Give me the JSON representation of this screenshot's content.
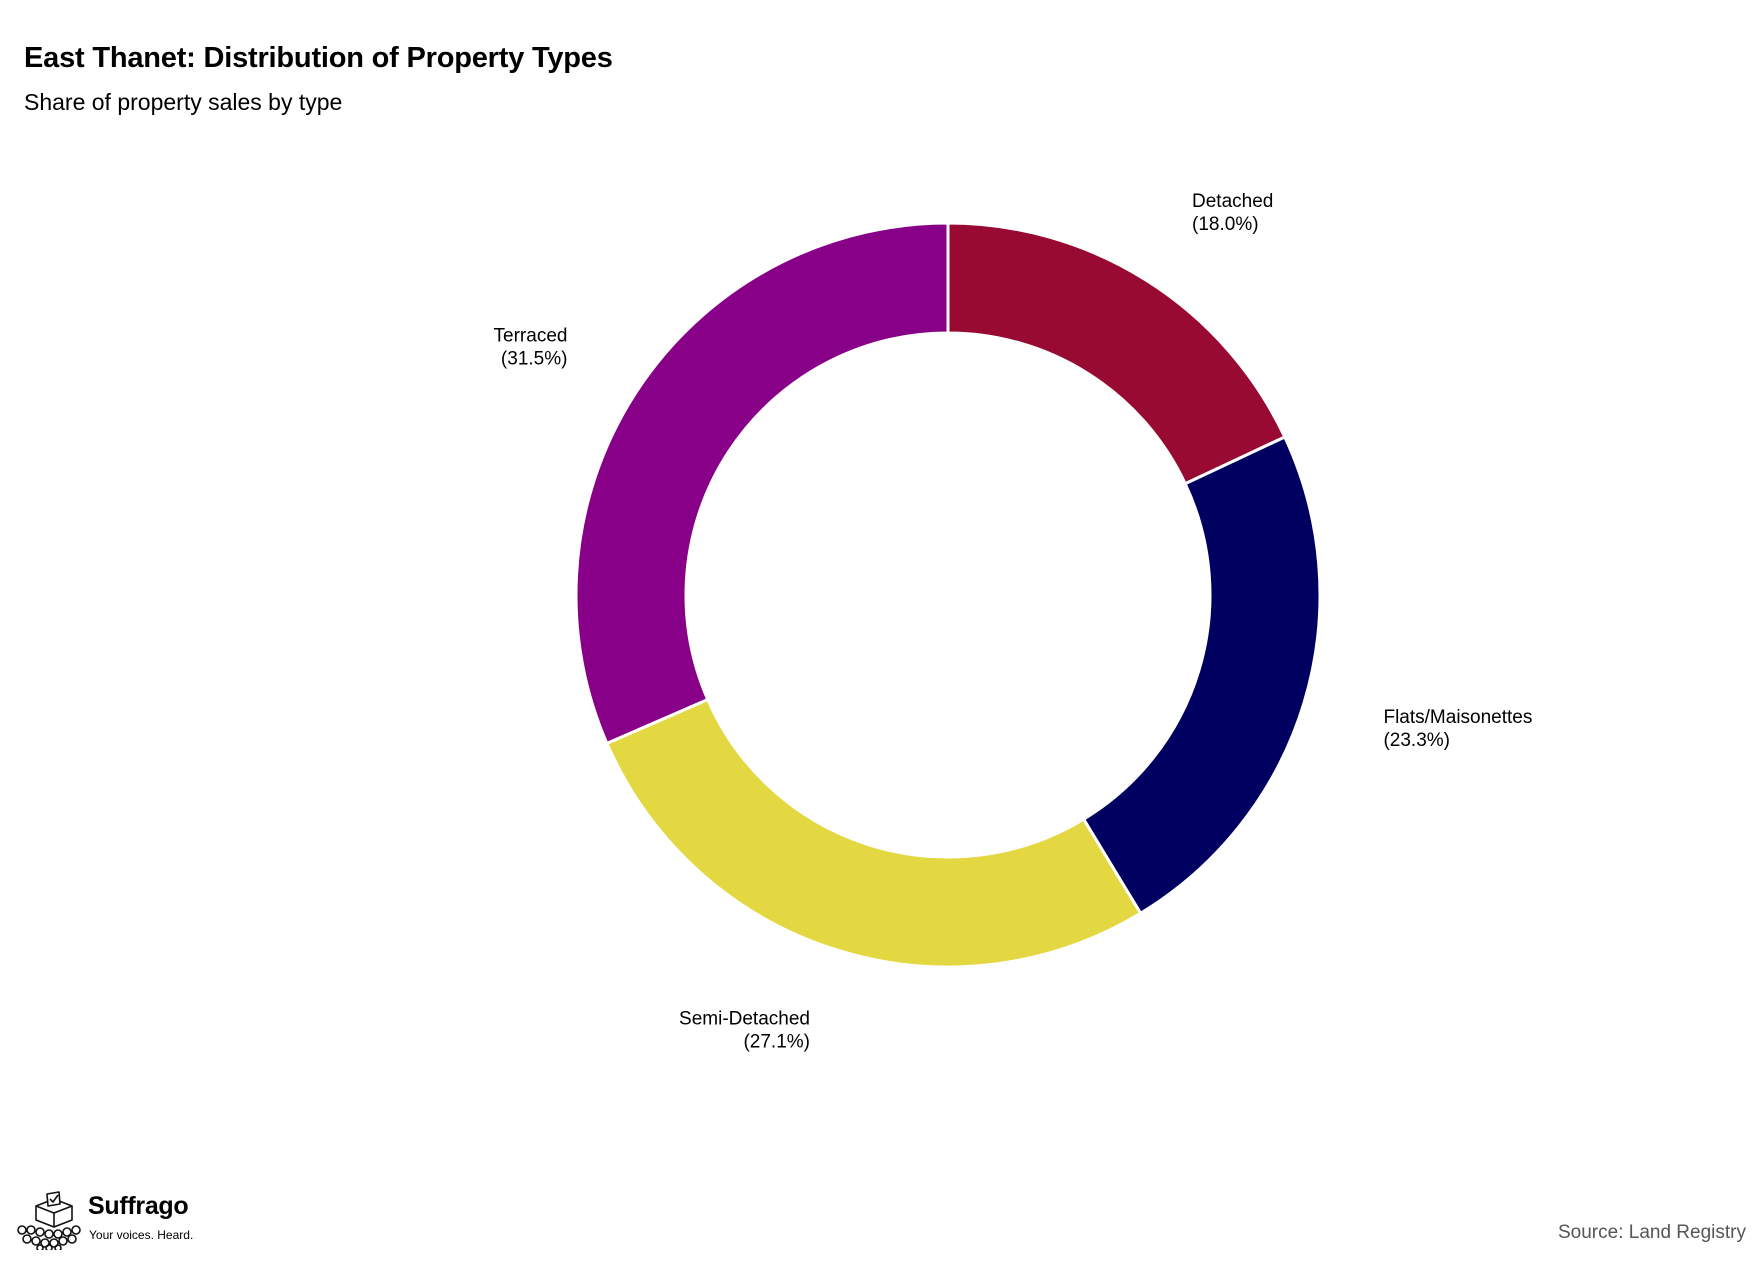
{
  "title": "East Thanet: Distribution of Property Types",
  "subtitle": "Share of property sales by type",
  "source": "Source: Land Registry",
  "brand": {
    "name": "Suffrago",
    "tagline": "Your voices. Heard.",
    "logo_icon": "ballot-box-crowd-icon"
  },
  "chart_data": {
    "type": "pie",
    "variant": "donut",
    "title": "East Thanet: Distribution of Property Types",
    "subtitle": "Share of property sales by type",
    "start": "12 o'clock",
    "direction": "clockwise",
    "legend": "none",
    "slices": [
      {
        "label": "Detached",
        "value": 18.0,
        "display": "(18.0%)",
        "color": "#990A32"
      },
      {
        "label": "Flats/Maisonettes",
        "value": 23.3,
        "display": "(23.3%)",
        "color": "#000060"
      },
      {
        "label": "Semi-Detached",
        "value": 27.1,
        "display": "(27.1%)",
        "color": "#E3D742"
      },
      {
        "label": "Terraced",
        "value": 31.5,
        "display": "(31.5%)",
        "color": "#880088"
      }
    ]
  }
}
